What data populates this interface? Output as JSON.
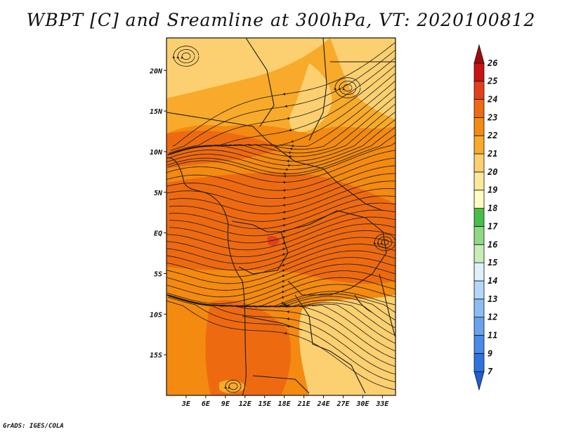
{
  "title": "WBPT [C] and Sreamline at 300hPa, VT: 2020100812",
  "footer": "GrADS: IGES/COLA",
  "map": {
    "lon_range": [
      0,
      35
    ],
    "lat_range": [
      -20,
      24
    ],
    "lon_ticks": [
      "3E",
      "6E",
      "9E",
      "12E",
      "15E",
      "18E",
      "21E",
      "24E",
      "27E",
      "30E",
      "33E"
    ],
    "lat_ticks": [
      "20N",
      "15N",
      "10N",
      "5N",
      "EQ",
      "5S",
      "10S",
      "15S"
    ],
    "field_range_C": [
      19,
      24
    ]
  },
  "colorbar": {
    "labels": [
      "7",
      "9",
      "11",
      "12",
      "13",
      "14",
      "15",
      "16",
      "17",
      "18",
      "19",
      "20",
      "21",
      "22",
      "23",
      "24",
      "25",
      "26"
    ],
    "colors": [
      "#1e5fd2",
      "#2e73e0",
      "#4a8ae8",
      "#6aa2ee",
      "#8cbcf3",
      "#b4d7f8",
      "#dff0fb",
      "#c7ecb8",
      "#8fd886",
      "#46bf48",
      "#fffcc4",
      "#fde89a",
      "#fcd070",
      "#f8aa2a",
      "#f48a0f",
      "#ee6a10",
      "#e2401a",
      "#c81414",
      "#a40a0a"
    ]
  }
}
